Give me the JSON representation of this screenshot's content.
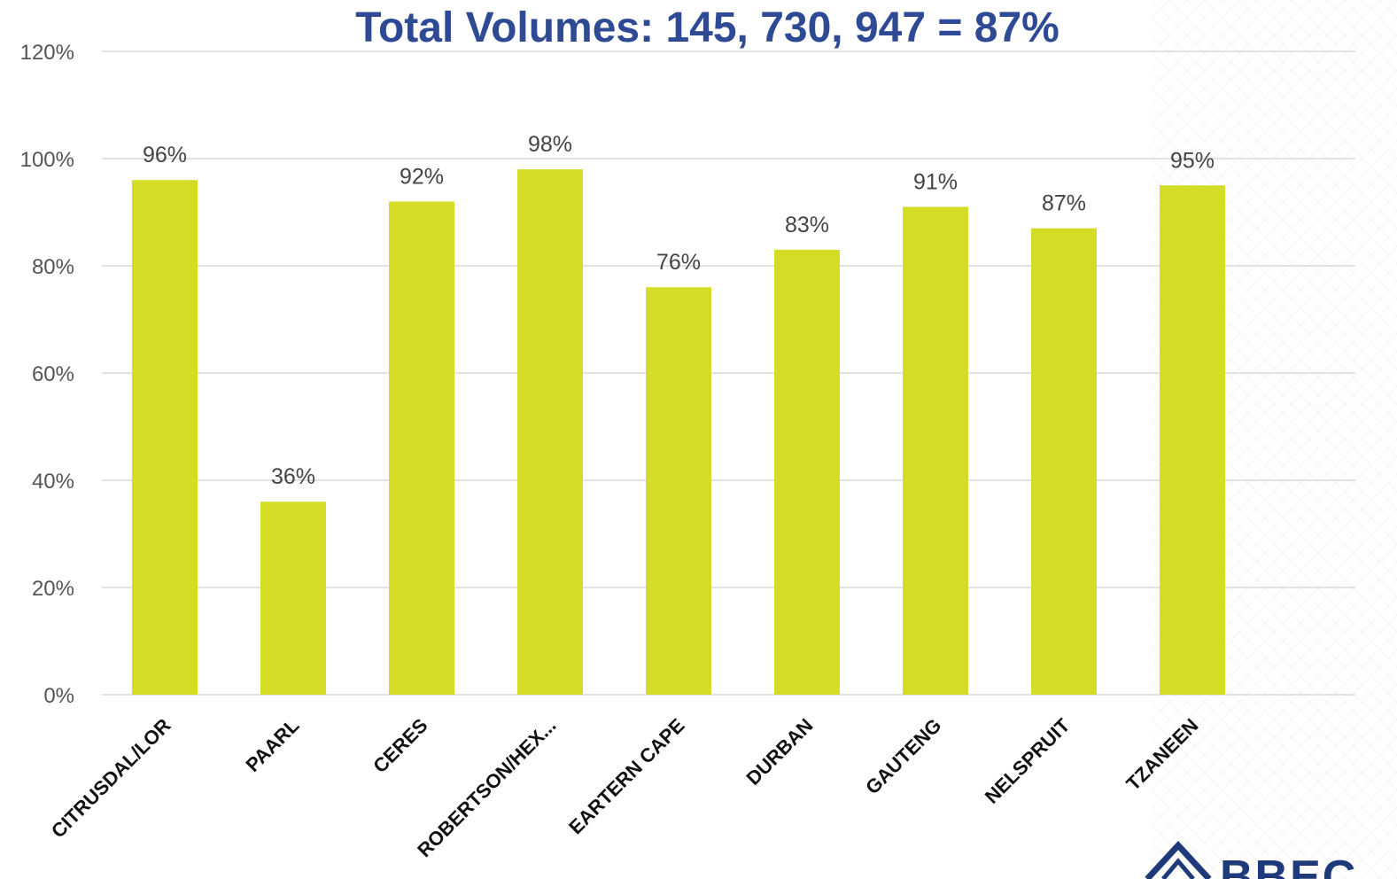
{
  "chart_data": {
    "type": "bar",
    "title": "Total Volumes: 145, 730, 947 = 87%",
    "categories": [
      "CITRUSDAL/LOR",
      "PAARL",
      "CERES",
      "ROBERTSON/HEX...",
      "EARTERN CAPE",
      "DURBAN",
      "GAUTENG",
      "NELSPRUIT",
      "TZANEEN"
    ],
    "values": [
      96,
      36,
      92,
      98,
      76,
      83,
      91,
      87,
      95
    ],
    "data_labels": [
      "96%",
      "36%",
      "92%",
      "98%",
      "76%",
      "83%",
      "91%",
      "87%",
      "95%"
    ],
    "yticks": [
      "0%",
      "20%",
      "40%",
      "60%",
      "80%",
      "100%",
      "120%"
    ],
    "ylim": [
      0,
      120
    ],
    "y_unit": "%",
    "grid": true,
    "bar_color": "#D4DC26",
    "title_color": "#2E4A94"
  },
  "logo": {
    "text": "BBEC",
    "color": "#1F3A7A"
  }
}
